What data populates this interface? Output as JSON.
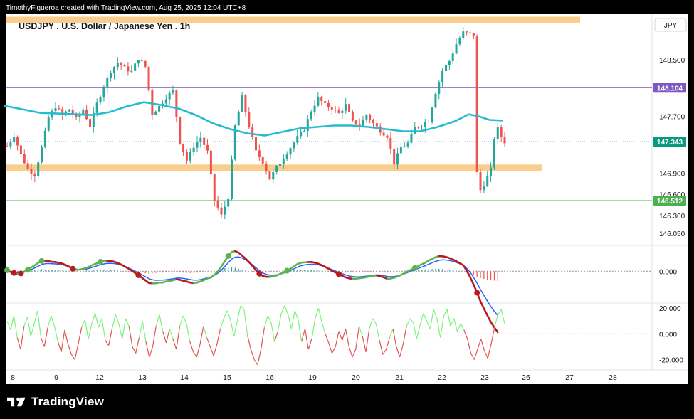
{
  "header": {
    "credit": "TimothyFigueroa created with TradingView.com, Aug 25, 2025 12:04 UTC+8",
    "symbol_title": "USDJPY . U.S. Dollar / Japanese Yen . 1h",
    "currency_button": "JPY"
  },
  "brand": {
    "name": "TradingView"
  },
  "colors": {
    "bull": "#26a69a",
    "bear": "#ef5350",
    "ema": "#26bcd0",
    "zone": "#f9cd8c",
    "purple_line": "#7e57c2",
    "green_line": "#4caf50",
    "price_badge": "#089981",
    "osc_green": "#5eb34f",
    "osc_red": "#b71c1c",
    "osc_blue": "#2962ff",
    "rsi_green": "#7cf47c",
    "rsi_red": "#e0544f"
  },
  "chart_data": [
    {
      "type": "candlestick",
      "title": "USDJPY . U.S. Dollar / Japanese Yen . 1h",
      "y_ticks": [
        "148.500",
        "147.700",
        "146.900",
        "146.600",
        "146.300",
        "146.050"
      ],
      "y_tick_values": [
        148.5,
        147.7,
        146.9,
        146.6,
        146.3,
        146.05
      ],
      "ylim": [
        145.88,
        149.14
      ],
      "x_ticks": [
        "8",
        "9",
        "12",
        "13",
        "14",
        "15",
        "16",
        "19",
        "20",
        "21",
        "22",
        "23",
        "26",
        "27",
        "28"
      ],
      "price_labels": [
        {
          "label": "148.104",
          "value": 148.104,
          "role": "horizontal-line"
        },
        {
          "label": "147.343",
          "value": 147.343,
          "role": "last-price"
        },
        {
          "label": "146.512",
          "value": 146.512,
          "role": "horizontal-line"
        }
      ],
      "zones": [
        {
          "value": 146.975,
          "extent": "to Aug 26"
        },
        {
          "value": 149.06,
          "extent": "to Aug 27"
        }
      ],
      "close_path": [
        [
          0,
          147.28
        ],
        [
          2,
          147.43
        ],
        [
          4,
          147.16
        ],
        [
          6,
          146.95
        ],
        [
          8,
          146.88
        ],
        [
          10,
          147.26
        ],
        [
          12,
          147.68
        ],
        [
          14,
          147.84
        ],
        [
          16,
          147.72
        ],
        [
          18,
          147.8
        ],
        [
          20,
          147.66
        ],
        [
          22,
          147.8
        ],
        [
          24,
          147.56
        ],
        [
          26,
          147.88
        ],
        [
          28,
          148.12
        ],
        [
          30,
          148.34
        ],
        [
          32,
          148.46
        ],
        [
          34,
          148.38
        ],
        [
          36,
          148.33
        ],
        [
          38,
          148.52
        ],
        [
          40,
          148.4
        ],
        [
          42,
          147.74
        ],
        [
          44,
          147.84
        ],
        [
          46,
          147.97
        ],
        [
          48,
          148.06
        ],
        [
          50,
          147.34
        ],
        [
          52,
          147.08
        ],
        [
          54,
          147.28
        ],
        [
          56,
          147.4
        ],
        [
          58,
          147.2
        ],
        [
          60,
          146.52
        ],
        [
          62,
          146.3
        ],
        [
          64,
          146.56
        ],
        [
          66,
          147.56
        ],
        [
          68,
          147.97
        ],
        [
          70,
          147.56
        ],
        [
          72,
          147.2
        ],
        [
          74,
          147.06
        ],
        [
          76,
          146.82
        ],
        [
          78,
          146.98
        ],
        [
          80,
          147.12
        ],
        [
          82,
          147.26
        ],
        [
          84,
          147.4
        ],
        [
          86,
          147.52
        ],
        [
          88,
          147.78
        ],
        [
          90,
          147.96
        ],
        [
          92,
          147.86
        ],
        [
          94,
          147.82
        ],
        [
          96,
          147.74
        ],
        [
          98,
          147.86
        ],
        [
          100,
          147.62
        ],
        [
          102,
          147.58
        ],
        [
          104,
          147.72
        ],
        [
          106,
          147.6
        ],
        [
          108,
          147.5
        ],
        [
          110,
          147.42
        ],
        [
          112,
          147.04
        ],
        [
          114,
          147.26
        ],
        [
          116,
          147.32
        ],
        [
          118,
          147.54
        ],
        [
          120,
          147.58
        ],
        [
          122,
          147.65
        ],
        [
          124,
          148.04
        ],
        [
          126,
          148.34
        ],
        [
          128,
          148.48
        ],
        [
          130,
          148.72
        ],
        [
          132,
          148.88
        ],
        [
          134,
          148.86
        ],
        [
          135,
          148.84
        ],
        [
          136,
          146.9
        ],
        [
          137,
          146.66
        ],
        [
          138,
          146.74
        ],
        [
          140,
          146.95
        ],
        [
          141,
          147.4
        ],
        [
          142,
          147.52
        ],
        [
          143,
          147.42
        ],
        [
          144,
          147.34
        ]
      ],
      "ema_path": [
        [
          0,
          147.85
        ],
        [
          10,
          147.75
        ],
        [
          20,
          147.73
        ],
        [
          25,
          147.72
        ],
        [
          30,
          147.76
        ],
        [
          35,
          147.84
        ],
        [
          40,
          147.9
        ],
        [
          45,
          147.86
        ],
        [
          50,
          147.81
        ],
        [
          55,
          147.72
        ],
        [
          60,
          147.6
        ],
        [
          65,
          147.52
        ],
        [
          70,
          147.46
        ],
        [
          75,
          147.43
        ],
        [
          80,
          147.48
        ],
        [
          85,
          147.53
        ],
        [
          90,
          147.55
        ],
        [
          95,
          147.57
        ],
        [
          100,
          147.57
        ],
        [
          105,
          147.55
        ],
        [
          110,
          147.52
        ],
        [
          115,
          147.49
        ],
        [
          120,
          147.49
        ],
        [
          125,
          147.55
        ],
        [
          130,
          147.63
        ],
        [
          134,
          147.73
        ],
        [
          137,
          147.7
        ],
        [
          140,
          147.65
        ],
        [
          144,
          147.64
        ]
      ]
    },
    {
      "type": "line",
      "name": "oscillator",
      "y_ticks": [
        "0.000"
      ],
      "y_tick_values": [
        0
      ],
      "ylim": [
        -1.6,
        1.3
      ],
      "cross_points": [
        {
          "x": 0,
          "color": "green"
        },
        {
          "x": 2,
          "color": "red"
        },
        {
          "x": 4,
          "color": "red"
        },
        {
          "x": 6,
          "color": "green"
        },
        {
          "x": 10,
          "color": "green"
        },
        {
          "x": 19,
          "color": "red"
        },
        {
          "x": 27,
          "color": "green"
        },
        {
          "x": 38,
          "color": "red"
        },
        {
          "x": 64,
          "color": "green"
        },
        {
          "x": 73,
          "color": "red"
        },
        {
          "x": 81,
          "color": "green"
        },
        {
          "x": 96,
          "color": "red"
        },
        {
          "x": 118,
          "color": "green"
        },
        {
          "x": 136,
          "color": "red"
        }
      ],
      "hist": [
        0.05,
        -0.05,
        -0.08,
        -0.1,
        -0.05,
        0.05,
        0.1,
        0.18,
        0.22,
        0.28,
        0.3,
        0.25,
        0.2,
        0.15,
        0.15,
        0.12,
        0.1,
        0.05,
        0.0,
        -0.05,
        -0.05,
        0.0,
        0.05,
        0.1,
        0.15,
        0.2,
        0.22,
        0.25,
        0.25,
        0.22,
        0.2,
        0.15,
        0.1,
        0.05,
        0.0,
        -0.05,
        -0.1,
        -0.15,
        -0.2,
        -0.25,
        -0.3,
        -0.35,
        -0.3,
        -0.25,
        -0.2,
        -0.2,
        -0.15,
        -0.15,
        -0.12,
        -0.1,
        -0.15,
        -0.2,
        -0.22,
        -0.25,
        -0.25,
        -0.2,
        -0.15,
        -0.1,
        -0.05,
        -0.05,
        0.05,
        0.15,
        0.3,
        0.45,
        0.55,
        0.6,
        0.5,
        0.35,
        0.2,
        0.1,
        0.0,
        -0.1,
        -0.2,
        -0.25,
        -0.25,
        -0.2,
        -0.15,
        -0.1,
        -0.05,
        0.0,
        0.05,
        0.1,
        0.15,
        0.2,
        0.25,
        0.25,
        0.22,
        0.2,
        0.18,
        0.15,
        0.1,
        0.05,
        0.0,
        -0.05,
        -0.1,
        -0.12,
        -0.15,
        -0.18,
        -0.2,
        -0.2,
        -0.18,
        -0.15,
        -0.12,
        -0.1,
        -0.08,
        -0.05,
        -0.05,
        -0.05,
        -0.1,
        -0.15,
        -0.2,
        -0.15,
        -0.1,
        -0.05,
        0.0,
        0.05,
        0.1,
        0.12,
        0.15,
        0.2,
        0.22,
        0.25,
        0.3,
        0.32,
        0.35,
        0.35,
        0.3,
        0.25,
        0.2,
        0.15,
        0.1,
        0.05,
        0.0,
        -0.2,
        -0.4,
        -0.6,
        -0.8,
        -1.0,
        -1.1,
        -1.2,
        -1.3,
        -1.35,
        -1.4
      ]
    },
    {
      "type": "line",
      "name": "momentum",
      "y_ticks": [
        "20.000",
        "0.000",
        "-20.000"
      ],
      "y_tick_values": [
        20,
        0,
        -20
      ],
      "ylim": [
        -28,
        24
      ],
      "values": [
        10,
        3,
        14,
        -3,
        -12,
        6,
        13,
        -2,
        8,
        18,
        -3,
        -10,
        5,
        14,
        6,
        -6,
        -14,
        3,
        -8,
        -16,
        -20,
        -8,
        5,
        11,
        -4,
        8,
        16,
        5,
        12,
        -5,
        -9,
        4,
        15,
        8,
        -4,
        12,
        6,
        -10,
        -15,
        -3,
        10,
        -6,
        -18,
        -10,
        6,
        15,
        2,
        -7,
        4,
        -4,
        -12,
        6,
        14,
        8,
        -6,
        -14,
        -18,
        -8,
        6,
        -3,
        -10,
        -17,
        -8,
        4,
        12,
        18,
        11,
        -2,
        10,
        22,
        19,
        -1,
        -12,
        -20,
        -24,
        -12,
        5,
        14,
        9,
        -6,
        2,
        16,
        22,
        15,
        4,
        18,
        11,
        -6,
        4,
        -12,
        -4,
        12,
        20,
        9,
        0,
        -7,
        -15,
        -10,
        2,
        -5,
        4,
        -10,
        -18,
        -12,
        6,
        -2,
        -14,
        4,
        12,
        8,
        -5,
        -16,
        -12,
        -3,
        4,
        -10,
        -18,
        -8,
        6,
        12,
        9,
        -4,
        7,
        16,
        10,
        4,
        19,
        12,
        -3,
        14,
        19,
        6,
        12,
        2,
        8,
        3,
        -4,
        -15,
        -20,
        -12,
        -4,
        -13,
        -19,
        -8,
        5,
        15,
        19,
        8
      ]
    }
  ],
  "date_axis": {
    "ticks": [
      "8",
      "9",
      "12",
      "13",
      "14",
      "15",
      "16",
      "19",
      "20",
      "21",
      "22",
      "23",
      "26",
      "27",
      "28"
    ]
  }
}
